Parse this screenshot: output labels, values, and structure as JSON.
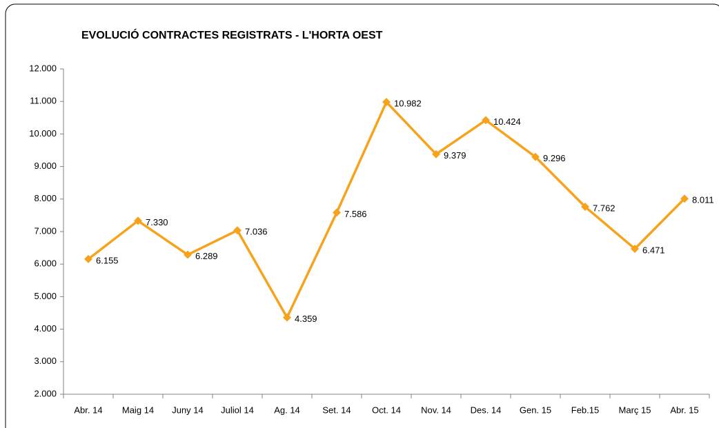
{
  "chart_data": {
    "type": "line",
    "title": "EVOLUCIÓ CONTRACTES REGISTRATS - L'HORTA OEST",
    "categories": [
      "Abr. 14",
      "Maig 14",
      "Juny 14",
      "Juliol 14",
      "Ag. 14",
      "Set. 14",
      "Oct. 14",
      "Nov. 14",
      "Des. 14",
      "Gen. 15",
      "Feb.15",
      "Març 15",
      "Abr. 15"
    ],
    "values": [
      6155,
      7330,
      6289,
      7036,
      4359,
      7586,
      10982,
      9379,
      10424,
      9296,
      7762,
      6471,
      8011
    ],
    "value_labels": [
      "6.155",
      "7.330",
      "6.289",
      "7.036",
      "4.359",
      "7.586",
      "10.982",
      "9.379",
      "10.424",
      "9.296",
      "7.762",
      "6.471",
      "8.011"
    ],
    "color": "#f7a21b",
    "ylim": [
      2000,
      12000
    ],
    "yticks": [
      {
        "value": 2000,
        "label": "2.000"
      },
      {
        "value": 3000,
        "label": "3.000"
      },
      {
        "value": 4000,
        "label": "4.000"
      },
      {
        "value": 5000,
        "label": "5.000"
      },
      {
        "value": 6000,
        "label": "6.000"
      },
      {
        "value": 7000,
        "label": "7.000"
      },
      {
        "value": 8000,
        "label": "8.000"
      },
      {
        "value": 9000,
        "label": "9.000"
      },
      {
        "value": 10000,
        "label": "10.000"
      },
      {
        "value": 11000,
        "label": "11.000"
      },
      {
        "value": 12000,
        "label": "12.000"
      }
    ],
    "grid": false
  }
}
